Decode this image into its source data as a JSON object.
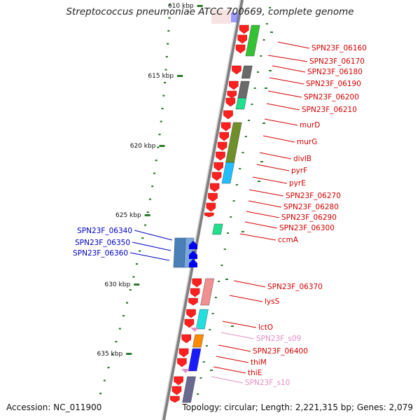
{
  "title": "Streptococcus pneumoniae ATCC 700669, complete genome",
  "footer": {
    "accession": "Accession: NC_011900",
    "topology": "Topology: circular; Length: 2,221,315 bp; Genes: 2,079"
  },
  "ticks": [
    "610 kbp",
    "615 kbp",
    "620 kbp",
    "625 kbp",
    "630 kbp",
    "635 kbp"
  ],
  "colors": {
    "backbone": "#7f7f7f",
    "tick": "#2a7a2a",
    "forward_label": "#d40000",
    "reverse_label": "#0000c0",
    "rna_label": "#e38ec3"
  },
  "forward_labels": [
    "SPN23F_06160",
    "SPN23F_06170",
    "SPN23F_06180",
    "SPN23F_06190",
    "SPN23F_06200",
    "SPN23F_06210",
    "murD",
    "murG",
    "divIB",
    "pyrF",
    "pyrE",
    "SPN23F_06270",
    "SPN23F_06280",
    "SPN23F_06290",
    "SPN23F_06300",
    "ccmA",
    "SPN23F_06370",
    "lysS",
    "lctO",
    "SPN23F_s09",
    "SPN23F_06400",
    "thiM",
    "thiE",
    "SPN23F_s10"
  ],
  "reverse_labels": [
    "SPN23F_06340",
    "SPN23F_06350",
    "SPN23F_06360"
  ]
}
